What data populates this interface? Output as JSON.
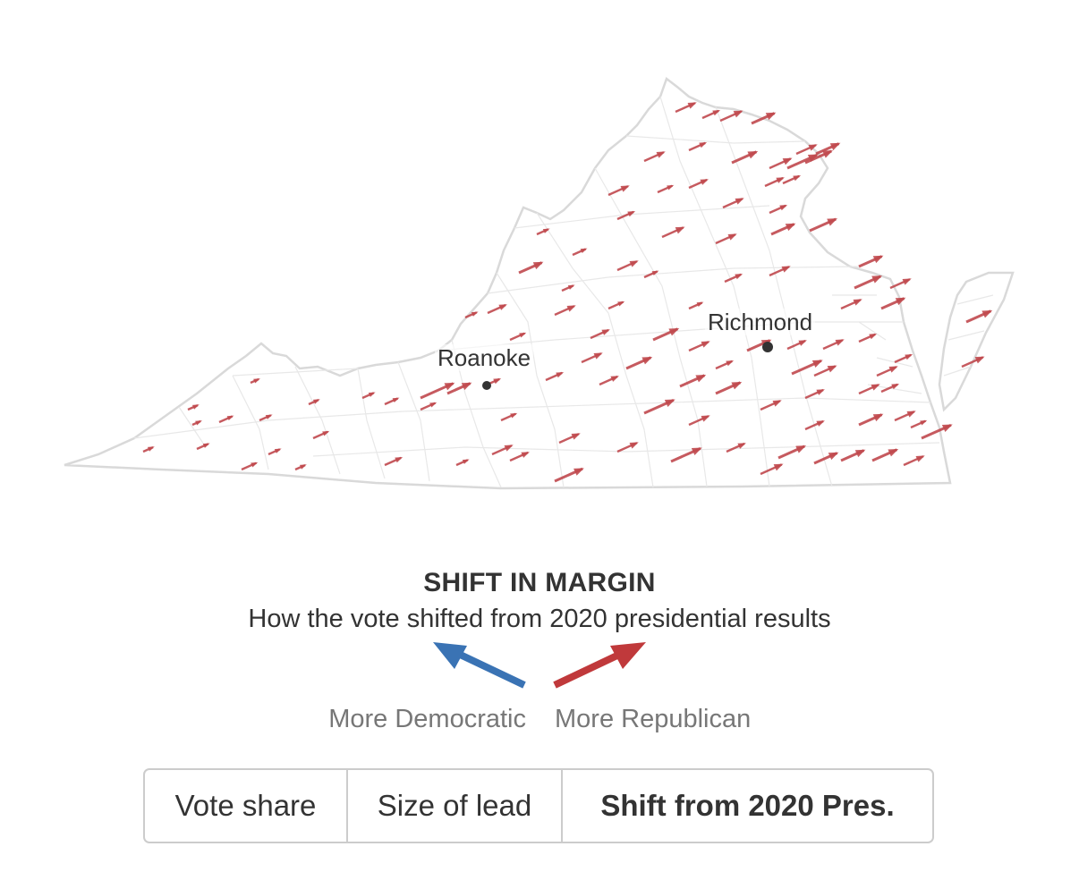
{
  "map": {
    "cities": [
      {
        "name": "Richmond",
        "lon": -77.44,
        "lat": 37.54
      },
      {
        "name": "Roanoke",
        "lon": -79.94,
        "lat": 37.27
      }
    ],
    "arrow_color": "#c0494e",
    "outline_color": "#d9d9d9"
  },
  "legend": {
    "title": "SHIFT IN MARGIN",
    "subtitle": "How the vote shifted from 2020 presidential results",
    "dem_label": "More Democratic",
    "rep_label": "More Republican",
    "dem_color": "#3a73b4",
    "rep_color": "#c0393b"
  },
  "toggle": {
    "options": [
      "Vote share",
      "Size of lead",
      "Shift from 2020 Pres."
    ],
    "selected": "Shift from 2020 Pres."
  }
}
